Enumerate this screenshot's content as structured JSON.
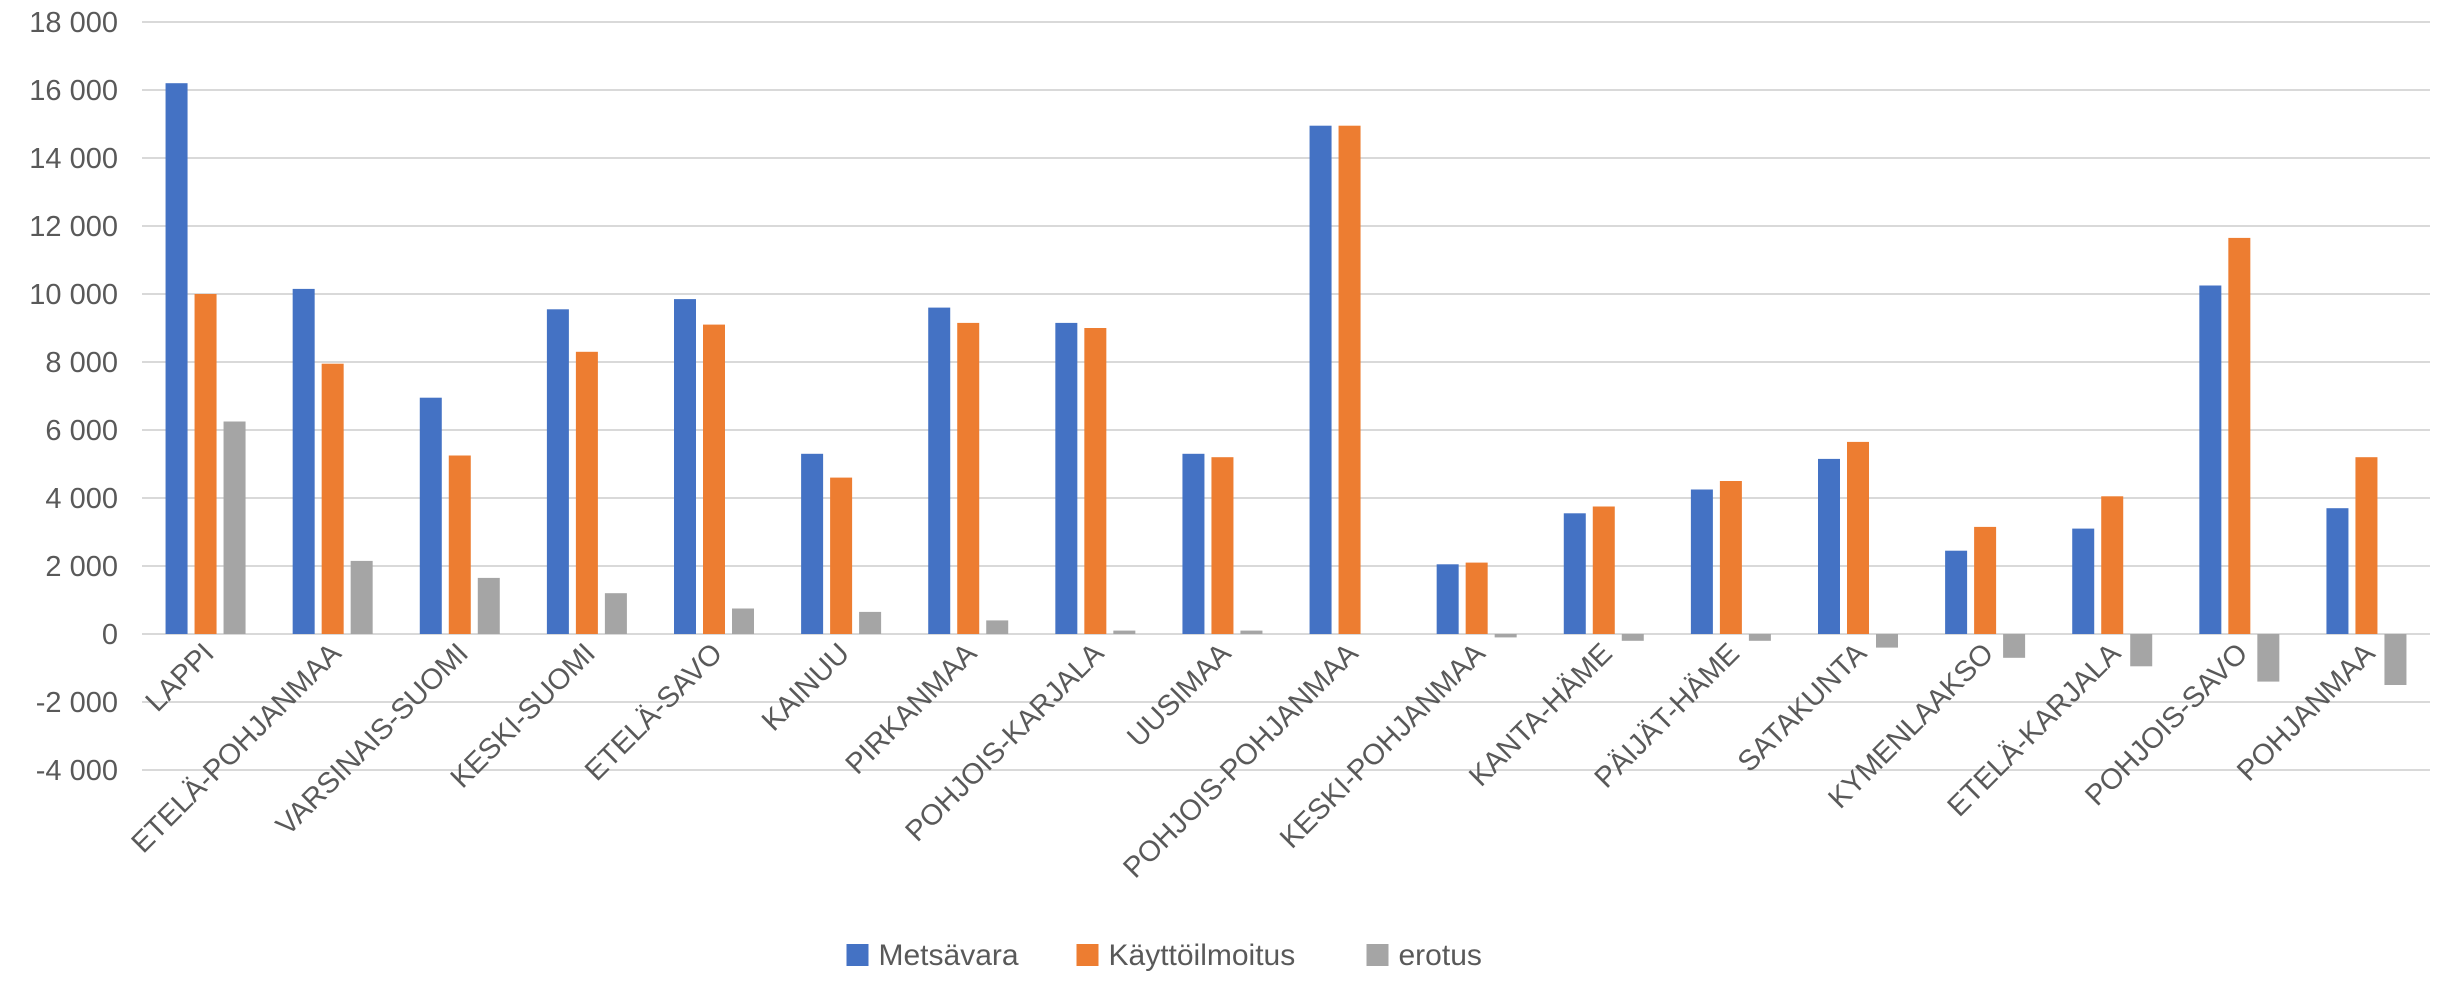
{
  "chart_data": {
    "type": "bar",
    "categories": [
      "LAPPI",
      "ETELÄ-POHJANMAA",
      "VARSINAIS-SUOMI",
      "KESKI-SUOMI",
      "ETELÄ-SAVO",
      "KAINUU",
      "PIRKANMAA",
      "POHJOIS-KARJALA",
      "UUSIMAA",
      "POHJOIS-POHJANMAA",
      "KESKI-POHJANMAA",
      "KANTA-HÄME",
      "PÄIJÄT-HÄME",
      "SATAKUNTA",
      "KYMENLAAKSO",
      "ETELÄ-KARJALA",
      "POHJOIS-SAVO",
      "POHJANMAA"
    ],
    "series": [
      {
        "name": "Metsävara",
        "color": "#4472C4",
        "values": [
          16200,
          10150,
          6950,
          9550,
          9850,
          5300,
          9600,
          9150,
          5300,
          14950,
          2050,
          3550,
          4250,
          5150,
          2450,
          3100,
          10250,
          3700
        ]
      },
      {
        "name": "Käyttöilmoitus",
        "color": "#ED7D31",
        "values": [
          10000,
          7950,
          5250,
          8300,
          9100,
          4600,
          9150,
          9000,
          5200,
          14950,
          2100,
          3750,
          4500,
          5650,
          3150,
          4050,
          11650,
          5200
        ]
      },
      {
        "name": "erotus",
        "color": "#A5A5A5",
        "values": [
          6250,
          2150,
          1650,
          1200,
          750,
          650,
          400,
          100,
          100,
          0,
          -100,
          -200,
          -200,
          -400,
          -700,
          -950,
          -1400,
          -1500
        ]
      }
    ],
    "yticks": [
      "18 000",
      "16 000",
      "14 000",
      "12 000",
      "10 000",
      "8 000",
      "6 000",
      "4 000",
      "2 000",
      "0",
      "-2 000",
      "-4 000"
    ],
    "ylim": [
      -4000,
      18000
    ],
    "grid": true,
    "legend_position": "bottom"
  }
}
